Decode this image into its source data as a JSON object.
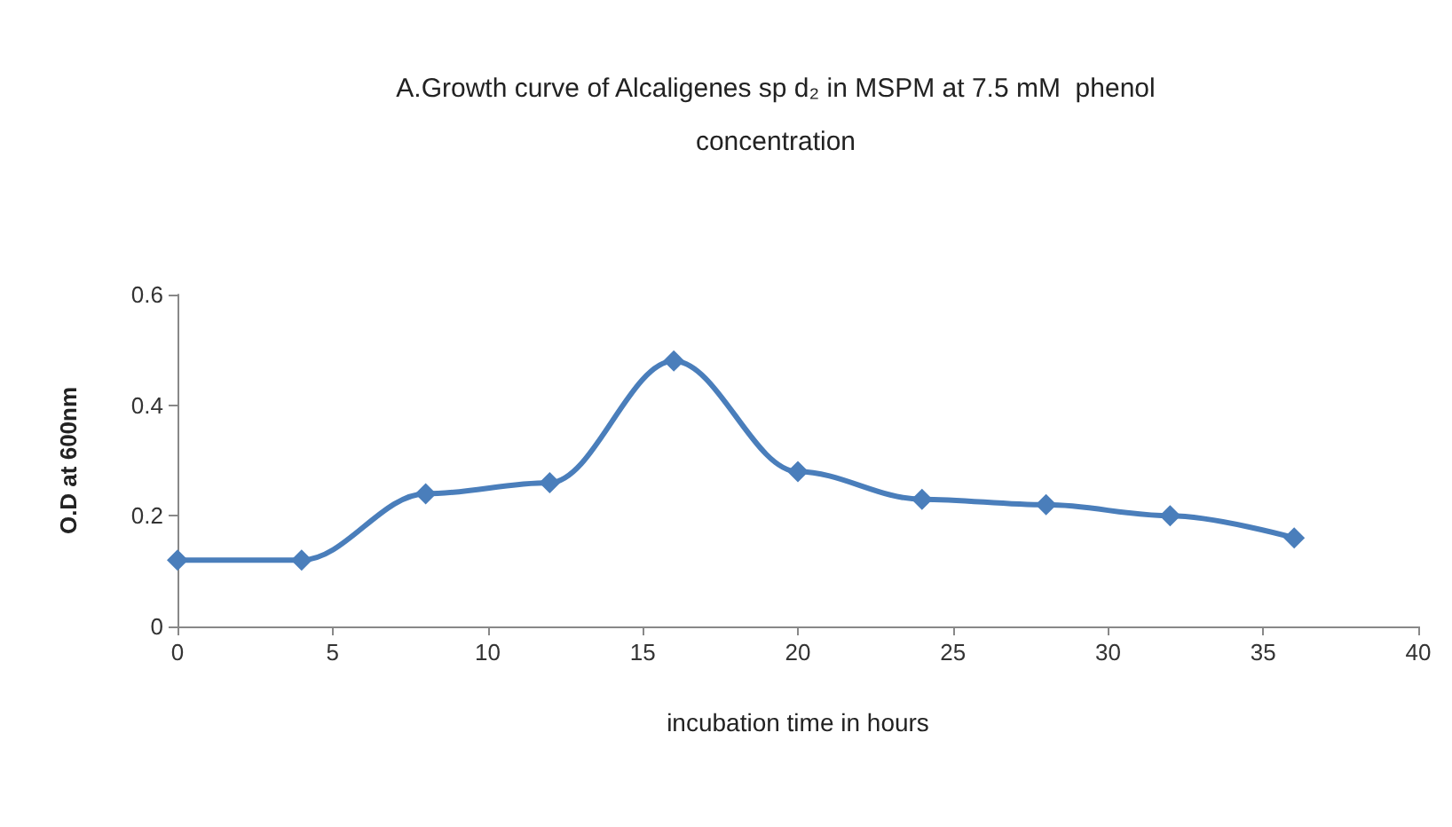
{
  "chart_data": {
    "type": "line",
    "title": "A.Growth curve of Alcaligenes sp d₂ in MSPM at 7.5 mM  phenol\nconcentration",
    "xlabel": "incubation time in hours",
    "ylabel": "O.D at 600nm",
    "x": [
      0,
      4,
      8,
      12,
      16,
      20,
      24,
      28,
      32,
      36
    ],
    "series": [
      {
        "color": "#4a7ebb",
        "values": [
          0.12,
          0.12,
          0.24,
          0.26,
          0.48,
          0.28,
          0.23,
          0.22,
          0.2,
          0.16
        ]
      }
    ],
    "xlim": [
      0,
      40
    ],
    "xticks": [
      0,
      5,
      10,
      15,
      20,
      25,
      30,
      35,
      40
    ],
    "ylim": [
      0,
      0.6
    ],
    "yticks": [
      0,
      0.2,
      0.4,
      0.6
    ],
    "grid": false,
    "marker": "diamond",
    "line_style": "solid"
  }
}
